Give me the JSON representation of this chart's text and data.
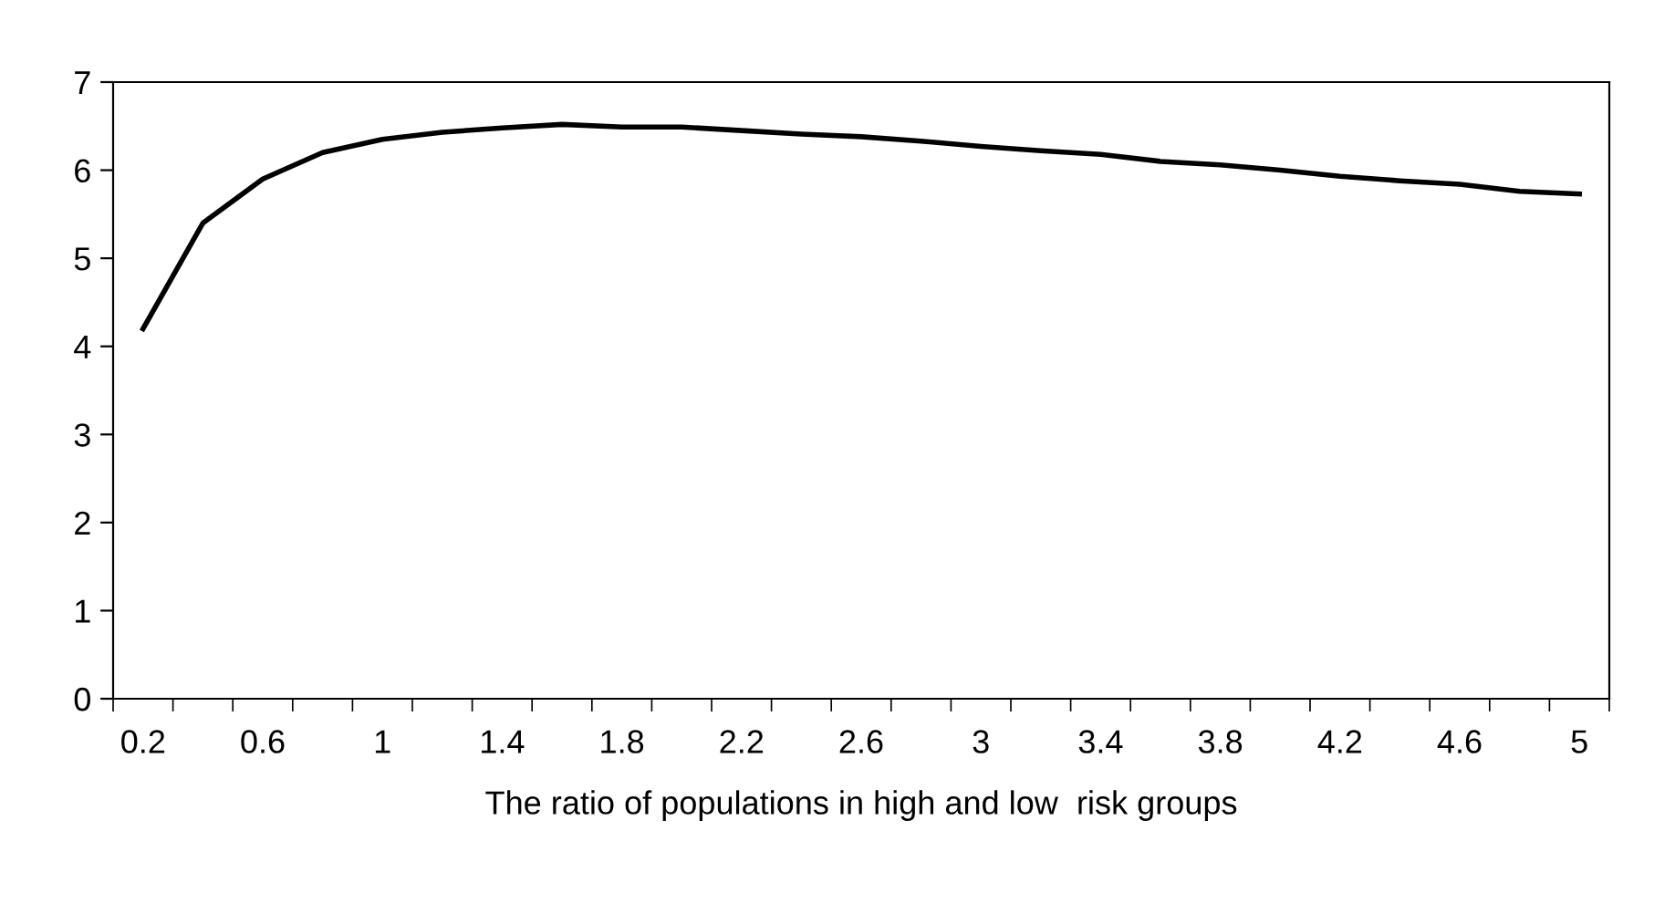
{
  "chart_data": {
    "type": "line",
    "xlabel": "The ratio of populations in high and low  risk groups",
    "categories": [
      "0.2",
      null,
      "0.6",
      null,
      "1",
      null,
      "1.4",
      null,
      "1.8",
      null,
      "2.2",
      null,
      "2.6",
      null,
      "3",
      null,
      "3.4",
      null,
      "3.8",
      null,
      "4.2",
      null,
      "4.6",
      null,
      "5"
    ],
    "series": [
      {
        "color": "#000000",
        "values": [
          4.2,
          5.4,
          5.9,
          6.2,
          6.35,
          6.43,
          6.48,
          6.52,
          6.49,
          6.49,
          6.45,
          6.41,
          6.38,
          6.33,
          6.27,
          6.22,
          6.18,
          6.1,
          6.06,
          6.0,
          5.93,
          5.88,
          5.84,
          5.76,
          5.73
        ]
      }
    ],
    "ylim": [
      0,
      7
    ],
    "yticks": [
      0,
      1,
      2,
      3,
      4,
      5,
      6,
      7
    ],
    "grid": false,
    "legend": false,
    "marker": "none",
    "line_style": "solid"
  }
}
